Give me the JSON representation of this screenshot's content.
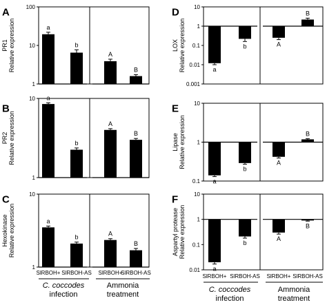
{
  "panel_labels": [
    "A",
    "B",
    "C",
    "D",
    "E",
    "F"
  ],
  "x_tick_labels": [
    "SlRBOH+",
    "SlRBOH-AS"
  ],
  "group_labels": [
    {
      "line1": "C. coccodes",
      "line2": "infection"
    },
    {
      "line1": "Ammonia",
      "line2": "treatment"
    }
  ],
  "colors": {
    "bar": "#000000",
    "axis": "#000000",
    "background": "#ffffff"
  },
  "chart_data": [
    {
      "panel": "A",
      "type": "bar",
      "yscale": "log",
      "ylim": [
        1,
        100
      ],
      "gene": "PR1",
      "ylabel": "Relative expression",
      "yticks": [
        1,
        10,
        100
      ],
      "ytick_labels": [
        "1",
        "10",
        "100"
      ],
      "categories": [
        "SlRBOH+",
        "SlRBOH-AS",
        "SlRBOH+",
        "SlRBOH-AS"
      ],
      "groups": [
        "C. coccodes infection",
        "C. coccodes infection",
        "Ammonia treatment",
        "Ammonia treatment"
      ],
      "values": [
        19.5,
        6.5,
        3.9,
        1.6
      ],
      "errors": [
        2.5,
        1.2,
        0.5,
        0.15
      ],
      "letters": [
        "a",
        "b",
        "A",
        "B"
      ]
    },
    {
      "panel": "B",
      "type": "bar",
      "yscale": "log",
      "ylim": [
        1,
        10
      ],
      "gene": "PR2",
      "ylabel": "Relative expression",
      "yticks": [
        1,
        10
      ],
      "ytick_labels": [
        "1",
        "10"
      ],
      "categories": [
        "SlRBOH+",
        "SlRBOH-AS",
        "SlRBOH+",
        "SlRBOH-AS"
      ],
      "groups": [
        "C. coccodes infection",
        "C. coccodes infection",
        "Ammonia treatment",
        "Ammonia treatment"
      ],
      "values": [
        8.5,
        2.25,
        4.0,
        3.0
      ],
      "errors": [
        0.3,
        0.12,
        0.15,
        0.12
      ],
      "letters": [
        "a",
        "b",
        "A",
        "B"
      ]
    },
    {
      "panel": "C",
      "type": "bar",
      "yscale": "log",
      "ylim": [
        1,
        10
      ],
      "gene": "Hexokinase",
      "ylabel": "Relative expression",
      "yticks": [
        1,
        10
      ],
      "ytick_labels": [
        "1",
        "10"
      ],
      "categories": [
        "SlRBOH+",
        "SlRBOH-AS",
        "SlRBOH+",
        "SlRBOH-AS"
      ],
      "groups": [
        "C. coccodes infection",
        "C. coccodes infection",
        "Ammonia treatment",
        "Ammonia treatment"
      ],
      "values": [
        3.5,
        2.1,
        2.35,
        1.7
      ],
      "errors": [
        0.15,
        0.1,
        0.1,
        0.1
      ],
      "letters": [
        "a",
        "b",
        "A",
        "B"
      ]
    },
    {
      "panel": "D",
      "type": "bar",
      "yscale": "log",
      "ylim": [
        0.001,
        10
      ],
      "baseline": 1,
      "gene": "LOX",
      "ylabel": "Relative expression",
      "yticks": [
        0.001,
        0.01,
        0.1,
        1,
        10
      ],
      "ytick_labels": [
        "0.001",
        "0.01",
        "0.1",
        "1",
        "10"
      ],
      "categories": [
        "SlRBOH+",
        "SlRBOH-AS",
        "SlRBOH+",
        "SlRBOH-AS"
      ],
      "groups": [
        "C. coccodes infection",
        "C. coccodes infection",
        "Ammonia treatment",
        "Ammonia treatment"
      ],
      "values": [
        0.012,
        0.22,
        0.25,
        2.2
      ],
      "errors": [
        0.002,
        0.06,
        0.05,
        0.4
      ],
      "letters": [
        "a",
        "b",
        "A",
        "B"
      ]
    },
    {
      "panel": "E",
      "type": "bar",
      "yscale": "log",
      "ylim": [
        0.1,
        10
      ],
      "baseline": 1,
      "gene": "Lipase",
      "ylabel": "Relative expression",
      "yticks": [
        0.1,
        1,
        10
      ],
      "ytick_labels": [
        "0.1",
        "1",
        "10"
      ],
      "categories": [
        "SlRBOH+",
        "SlRBOH-AS",
        "SlRBOH+",
        "SlRBOH-AS"
      ],
      "groups": [
        "C. coccodes infection",
        "C. coccodes infection",
        "Ammonia treatment",
        "Ammonia treatment"
      ],
      "values": [
        0.14,
        0.29,
        0.42,
        1.18
      ],
      "errors": [
        0.01,
        0.02,
        0.03,
        0.05
      ],
      "letters": [
        "a",
        "b",
        "A",
        "B"
      ]
    },
    {
      "panel": "F",
      "type": "bar",
      "yscale": "log",
      "ylim": [
        0.01,
        10
      ],
      "baseline": 1,
      "gene": "Aspartyl protease",
      "ylabel": "Relative expression",
      "yticks": [
        0.01,
        0.1,
        1,
        10
      ],
      "ytick_labels": [
        "0.01",
        "0.1",
        "1",
        "10"
      ],
      "categories": [
        "SlRBOH+",
        "SlRBOH-AS",
        "SlRBOH+",
        "SlRBOH-AS"
      ],
      "groups": [
        "C. coccodes infection",
        "C. coccodes infection",
        "Ammonia treatment",
        "Ammonia treatment"
      ],
      "values": [
        0.02,
        0.21,
        0.3,
        0.9
      ],
      "errors": [
        0.003,
        0.03,
        0.04,
        0.05
      ],
      "letters": [
        "a",
        "b",
        "A",
        "B"
      ]
    }
  ]
}
